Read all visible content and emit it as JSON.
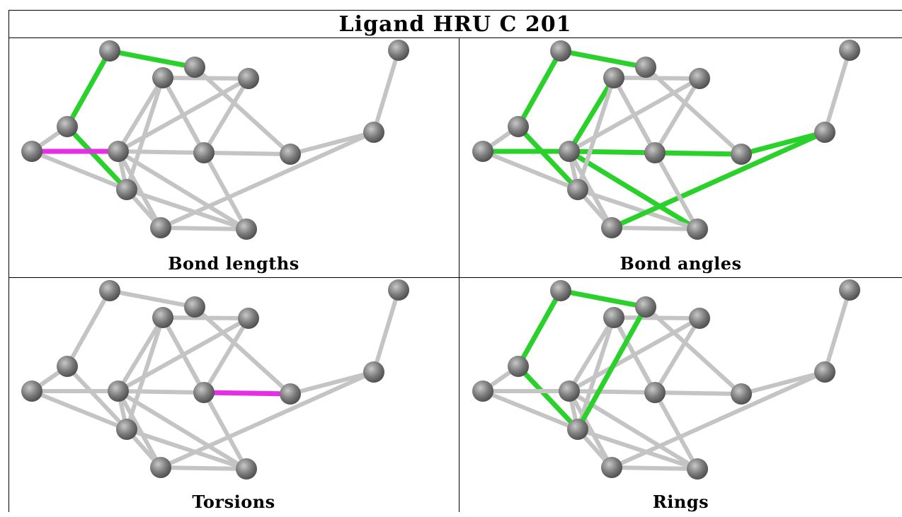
{
  "title": "Ligand HRU C 201",
  "panels": [
    {
      "caption": "Bond lengths"
    },
    {
      "caption": "Bond angles"
    },
    {
      "caption": "Torsions"
    },
    {
      "caption": "Rings"
    }
  ],
  "colors": {
    "bond_default": "#c4c4c4",
    "bond_green": "#2bd12b",
    "bond_magenta": "#e62ee6",
    "atom": "#7b7b7b"
  },
  "molecule": {
    "atoms": [
      {
        "id": "a1"
      },
      {
        "id": "a2"
      },
      {
        "id": "a3"
      },
      {
        "id": "a4"
      },
      {
        "id": "a5"
      },
      {
        "id": "a6"
      },
      {
        "id": "a7"
      },
      {
        "id": "a8"
      },
      {
        "id": "a9"
      },
      {
        "id": "a10"
      },
      {
        "id": "a11"
      },
      {
        "id": "a12"
      },
      {
        "id": "a13"
      },
      {
        "id": "a14"
      },
      {
        "id": "a15"
      }
    ],
    "bonds": [
      [
        "a1",
        "a2"
      ],
      [
        "a1",
        "a3"
      ],
      [
        "a3",
        "a4"
      ],
      [
        "a3",
        "a6"
      ],
      [
        "a4",
        "a7"
      ],
      [
        "a4",
        "a5"
      ],
      [
        "a2",
        "a8"
      ],
      [
        "a5",
        "a6"
      ],
      [
        "a5",
        "a9"
      ],
      [
        "a5",
        "a10"
      ],
      [
        "a5",
        "a13"
      ],
      [
        "a5",
        "a14"
      ],
      [
        "a5",
        "a15"
      ],
      [
        "a6",
        "a9"
      ],
      [
        "a6",
        "a13"
      ],
      [
        "a6",
        "a14"
      ],
      [
        "a9",
        "a13"
      ],
      [
        "a8",
        "a12"
      ],
      [
        "a8",
        "a10"
      ],
      [
        "a10",
        "a14"
      ],
      [
        "a10",
        "a15"
      ],
      [
        "a12",
        "a11"
      ],
      [
        "a12",
        "a9"
      ],
      [
        "a13",
        "a14"
      ],
      [
        "a14",
        "a15"
      ]
    ],
    "highlights": [
      {
        "green": [
          [
            "a1",
            "a2"
          ],
          [
            "a1",
            "a3"
          ],
          [
            "a3",
            "a6"
          ]
        ],
        "magenta": [
          [
            "a4",
            "a5"
          ]
        ]
      },
      {
        "green": [
          [
            "a1",
            "a2"
          ],
          [
            "a1",
            "a3"
          ],
          [
            "a3",
            "a6"
          ],
          [
            "a5",
            "a10"
          ],
          [
            "a5",
            "a13"
          ],
          [
            "a5",
            "a14"
          ],
          [
            "a8",
            "a12"
          ],
          [
            "a8",
            "a10"
          ],
          [
            "a12",
            "a9"
          ],
          [
            "a4",
            "a5"
          ]
        ],
        "magenta": []
      },
      {
        "green": [],
        "magenta": [
          [
            "a10",
            "a8"
          ]
        ]
      },
      {
        "green": [
          [
            "a1",
            "a2"
          ],
          [
            "a1",
            "a3"
          ],
          [
            "a3",
            "a6"
          ],
          [
            "a6",
            "a7"
          ],
          [
            "a7",
            "a2"
          ]
        ],
        "magenta": []
      }
    ]
  }
}
